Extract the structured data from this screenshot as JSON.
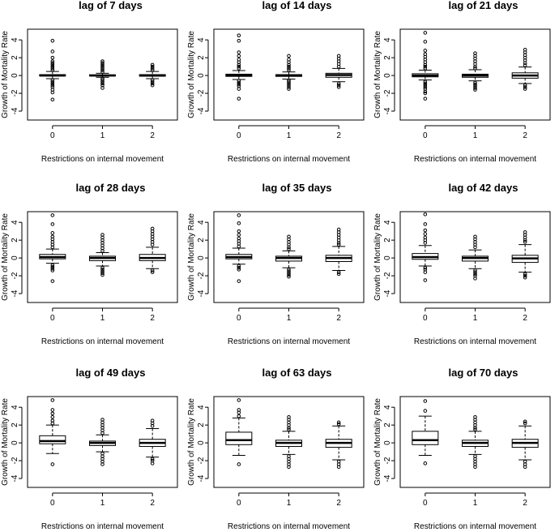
{
  "figure": {
    "description": "Growth of Mortality Rate vs Restrictions on internal movement at various lags"
  },
  "chart_data": [
    {
      "type": "boxplot",
      "title": "lag of 7 days",
      "xlabel": "Restrictions on internal movement",
      "ylabel": "Growth of Mortality Rate",
      "categories": [
        "0",
        "1",
        "2"
      ],
      "yticks": [
        -4,
        -2,
        0,
        2,
        4
      ],
      "ylim": [
        -5,
        5.2
      ],
      "boxes": [
        {
          "q1": -0.05,
          "median": 0.0,
          "q3": 0.1,
          "wlo": -0.35,
          "whi": 0.45,
          "outliers": [
            3.9,
            2.7,
            2.0,
            1.6,
            1.4,
            1.2,
            1.0,
            0.8,
            0.6,
            -0.5,
            -0.7,
            -0.9,
            -1.1,
            -1.3,
            -1.6,
            -1.9,
            -2.7
          ]
        },
        {
          "q1": -0.05,
          "median": 0.0,
          "q3": 0.08,
          "wlo": -0.2,
          "whi": 0.25,
          "outliers": [
            1.6,
            1.4,
            1.2,
            1.0,
            0.8,
            0.6,
            0.4,
            -0.35,
            -0.5,
            -0.7,
            -0.9,
            -1.1,
            -1.4
          ]
        },
        {
          "q1": -0.08,
          "median": 0.0,
          "q3": 0.1,
          "wlo": -0.35,
          "whi": 0.45,
          "outliers": [
            1.2,
            1.0,
            0.8,
            0.6,
            -0.5,
            -0.7,
            -0.9,
            -1.1
          ]
        }
      ]
    },
    {
      "type": "boxplot",
      "title": "lag of 14 days",
      "xlabel": "Restrictions on internal movement",
      "ylabel": "Growth of Mortality Rate",
      "categories": [
        "0",
        "1",
        "2"
      ],
      "yticks": [
        -4,
        -2,
        0,
        2,
        4
      ],
      "ylim": [
        -5,
        5.2
      ],
      "boxes": [
        {
          "q1": -0.1,
          "median": 0.0,
          "q3": 0.15,
          "wlo": -0.45,
          "whi": 0.55,
          "outliers": [
            4.5,
            3.9,
            2.6,
            2.2,
            1.8,
            1.5,
            1.2,
            1.0,
            0.8,
            -0.6,
            -0.8,
            -1.0,
            -1.2,
            -1.5,
            -2.6
          ]
        },
        {
          "q1": -0.1,
          "median": 0.0,
          "q3": 0.1,
          "wlo": -0.4,
          "whi": 0.4,
          "outliers": [
            2.2,
            1.8,
            1.5,
            1.2,
            1.0,
            0.8,
            0.6,
            -0.55,
            -0.7,
            -0.9,
            -1.1,
            -1.3,
            -1.5
          ]
        },
        {
          "q1": -0.2,
          "median": 0.05,
          "q3": 0.25,
          "wlo": -0.7,
          "whi": 0.8,
          "outliers": [
            2.2,
            1.9,
            1.6,
            1.3,
            1.0,
            -0.9,
            -1.1,
            -1.3
          ]
        }
      ]
    },
    {
      "type": "boxplot",
      "title": "lag of 21 days",
      "xlabel": "Restrictions on internal movement",
      "ylabel": "Growth of Mortality Rate",
      "categories": [
        "0",
        "1",
        "2"
      ],
      "yticks": [
        -4,
        -2,
        0,
        2,
        4
      ],
      "ylim": [
        -5,
        5.2
      ],
      "boxes": [
        {
          "q1": -0.15,
          "median": 0.0,
          "q3": 0.2,
          "wlo": -0.5,
          "whi": 0.6,
          "outliers": [
            4.8,
            3.8,
            2.8,
            2.4,
            2.1,
            1.8,
            1.5,
            1.2,
            1.0,
            0.8,
            -0.7,
            -0.9,
            -1.1,
            -1.3,
            -1.5,
            -1.8,
            -2.0,
            -2.6
          ]
        },
        {
          "q1": -0.2,
          "median": 0.0,
          "q3": 0.15,
          "wlo": -0.6,
          "whi": 0.65,
          "outliers": [
            2.5,
            2.2,
            1.9,
            1.6,
            1.3,
            1.0,
            0.8,
            -0.8,
            -1.0,
            -1.2,
            -1.4,
            -1.6
          ]
        },
        {
          "q1": -0.3,
          "median": 0.0,
          "q3": 0.3,
          "wlo": -0.9,
          "whi": 0.95,
          "outliers": [
            2.9,
            2.6,
            2.3,
            2.0,
            1.7,
            1.4,
            1.15,
            -1.1,
            -1.3,
            -1.5
          ]
        }
      ]
    },
    {
      "type": "boxplot",
      "title": "lag of 28 days",
      "xlabel": "Restrictions on internal movement",
      "ylabel": "Growth of Mortality Rate",
      "categories": [
        "0",
        "1",
        "2"
      ],
      "yticks": [
        -4,
        -2,
        0,
        2,
        4
      ],
      "ylim": [
        -5,
        5.2
      ],
      "boxes": [
        {
          "q1": -0.1,
          "median": 0.1,
          "q3": 0.4,
          "wlo": -0.6,
          "whi": 1.0,
          "outliers": [
            4.8,
            3.8,
            2.8,
            2.4,
            2.1,
            1.8,
            1.5,
            1.2,
            -0.8,
            -1.0,
            -1.2,
            -1.4,
            -2.6
          ]
        },
        {
          "q1": -0.3,
          "median": 0.0,
          "q3": 0.2,
          "wlo": -0.9,
          "whi": 0.6,
          "outliers": [
            2.6,
            2.3,
            2.0,
            1.7,
            1.4,
            1.1,
            0.8,
            -1.1,
            -1.3,
            -1.5,
            -1.7,
            -1.9
          ]
        },
        {
          "q1": -0.3,
          "median": 0.0,
          "q3": 0.4,
          "wlo": -1.2,
          "whi": 1.2,
          "outliers": [
            3.3,
            3.0,
            2.7,
            2.4,
            2.1,
            1.8,
            1.5,
            -1.4,
            -1.6
          ]
        }
      ]
    },
    {
      "type": "boxplot",
      "title": "lag of 35 days",
      "xlabel": "Restrictions on internal movement",
      "ylabel": "Growth of Mortality Rate",
      "categories": [
        "0",
        "1",
        "2"
      ],
      "yticks": [
        -4,
        -2,
        0,
        2,
        4
      ],
      "ylim": [
        -5,
        5.2
      ],
      "boxes": [
        {
          "q1": -0.1,
          "median": 0.1,
          "q3": 0.4,
          "wlo": -0.7,
          "whi": 1.1,
          "outliers": [
            4.8,
            3.9,
            3.0,
            2.6,
            2.2,
            1.9,
            1.6,
            1.3,
            -0.9,
            -1.1,
            -1.3,
            -2.6
          ]
        },
        {
          "q1": -0.35,
          "median": 0.0,
          "q3": 0.2,
          "wlo": -1.1,
          "whi": 0.8,
          "outliers": [
            2.4,
            2.1,
            1.8,
            1.5,
            1.2,
            1.0,
            -1.3,
            -1.5,
            -1.7,
            -1.9,
            -2.1
          ]
        },
        {
          "q1": -0.4,
          "median": 0.0,
          "q3": 0.3,
          "wlo": -1.4,
          "whi": 1.3,
          "outliers": [
            3.2,
            2.9,
            2.6,
            2.3,
            2.0,
            1.7,
            1.5,
            -1.6,
            -1.8
          ]
        }
      ]
    },
    {
      "type": "boxplot",
      "title": "lag of 42 days",
      "xlabel": "Restrictions on internal movement",
      "ylabel": "Growth of Mortality Rate",
      "categories": [
        "0",
        "1",
        "2"
      ],
      "yticks": [
        -4,
        -2,
        0,
        2,
        4
      ],
      "ylim": [
        -5,
        5.2
      ],
      "boxes": [
        {
          "q1": -0.15,
          "median": 0.1,
          "q3": 0.5,
          "wlo": -0.9,
          "whi": 1.4,
          "outliers": [
            4.9,
            3.8,
            3.1,
            2.7,
            2.3,
            2.0,
            1.7,
            -1.1,
            -1.3,
            -1.6,
            -2.5
          ]
        },
        {
          "q1": -0.35,
          "median": 0.0,
          "q3": 0.2,
          "wlo": -1.2,
          "whi": 0.9,
          "outliers": [
            2.4,
            2.1,
            1.8,
            1.5,
            1.2,
            -1.4,
            -1.6,
            -1.8,
            -2.0,
            -2.3
          ]
        },
        {
          "q1": -0.5,
          "median": -0.05,
          "q3": 0.3,
          "wlo": -1.6,
          "whi": 1.5,
          "outliers": [
            2.9,
            2.6,
            2.3,
            2.0,
            1.8,
            -1.8,
            -2.0,
            -2.2
          ]
        }
      ]
    },
    {
      "type": "boxplot",
      "title": "lag of 49 days",
      "xlabel": "Restrictions on internal movement",
      "ylabel": "Growth of Mortality Rate",
      "categories": [
        "0",
        "1",
        "2"
      ],
      "yticks": [
        -4,
        -2,
        0,
        2,
        4
      ],
      "ylim": [
        -5,
        5.2
      ],
      "boxes": [
        {
          "q1": -0.1,
          "median": 0.2,
          "q3": 0.8,
          "wlo": -1.2,
          "whi": 2.0,
          "outliers": [
            4.8,
            3.7,
            3.3,
            2.9,
            2.5,
            2.2,
            -2.4
          ]
        },
        {
          "q1": -0.3,
          "median": 0.0,
          "q3": 0.2,
          "wlo": -1.0,
          "whi": 0.9,
          "outliers": [
            2.6,
            2.3,
            2.0,
            1.7,
            1.4,
            1.1,
            -1.2,
            -1.5,
            -1.8,
            -2.1,
            -2.4
          ]
        },
        {
          "q1": -0.4,
          "median": 0.0,
          "q3": 0.4,
          "wlo": -1.6,
          "whi": 1.6,
          "outliers": [
            2.5,
            2.2,
            1.9,
            -1.8,
            -2.0,
            -2.3
          ]
        }
      ]
    },
    {
      "type": "boxplot",
      "title": "lag of 63 days",
      "xlabel": "Restrictions on internal movement",
      "ylabel": "Growth of Mortality Rate",
      "categories": [
        "0",
        "1",
        "2"
      ],
      "yticks": [
        -4,
        -2,
        0,
        2,
        4
      ],
      "ylim": [
        -5,
        5.2
      ],
      "boxes": [
        {
          "q1": -0.2,
          "median": 0.3,
          "q3": 1.2,
          "wlo": -1.4,
          "whi": 2.8,
          "outliers": [
            4.8,
            3.7,
            3.4,
            3.0,
            -2.4
          ]
        },
        {
          "q1": -0.4,
          "median": 0.0,
          "q3": 0.3,
          "wlo": -1.3,
          "whi": 1.3,
          "outliers": [
            2.9,
            2.6,
            2.3,
            2.0,
            1.7,
            1.5,
            -1.5,
            -1.8,
            -2.1,
            -2.4,
            -2.7
          ]
        },
        {
          "q1": -0.5,
          "median": 0.0,
          "q3": 0.4,
          "wlo": -1.9,
          "whi": 1.9,
          "outliers": [
            2.3,
            2.1,
            -2.1,
            -2.4,
            -2.7
          ]
        }
      ]
    },
    {
      "type": "boxplot",
      "title": "lag of 70 days",
      "xlabel": "Restrictions on internal movement",
      "ylabel": "Growth of Mortality Rate",
      "categories": [
        "0",
        "1",
        "2"
      ],
      "yticks": [
        -4,
        -2,
        0,
        2,
        4
      ],
      "ylim": [
        -5,
        5.2
      ],
      "boxes": [
        {
          "q1": -0.2,
          "median": 0.3,
          "q3": 1.3,
          "wlo": -1.4,
          "whi": 3.0,
          "outliers": [
            4.7,
            3.6,
            -2.3
          ]
        },
        {
          "q1": -0.4,
          "median": 0.0,
          "q3": 0.3,
          "wlo": -1.3,
          "whi": 1.3,
          "outliers": [
            2.9,
            2.6,
            2.3,
            2.0,
            1.7,
            1.5,
            -1.5,
            -1.8,
            -2.1,
            -2.4,
            -2.7
          ]
        },
        {
          "q1": -0.5,
          "median": 0.0,
          "q3": 0.4,
          "wlo": -1.9,
          "whi": 1.9,
          "outliers": [
            2.4,
            2.2,
            -2.1,
            -2.4,
            -2.7
          ]
        }
      ]
    }
  ]
}
